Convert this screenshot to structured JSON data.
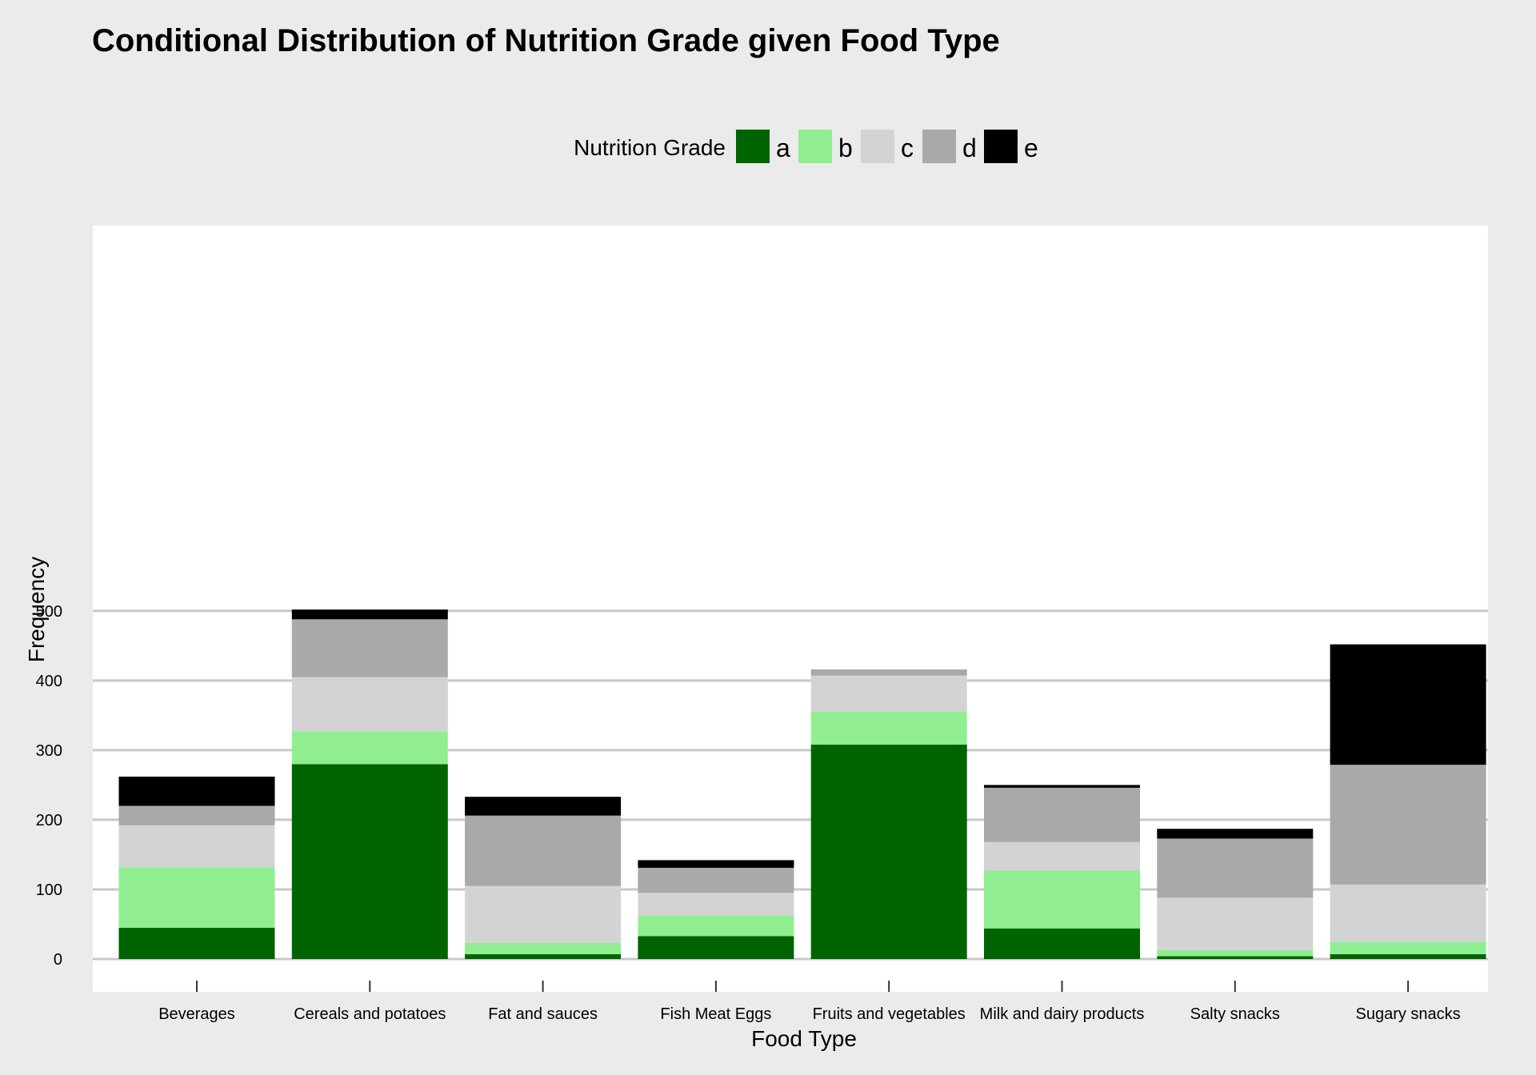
{
  "chart_data": {
    "type": "bar",
    "stacked": true,
    "title": "Conditional Distribution of Nutrition Grade given Food Type",
    "xlabel": "Food Type",
    "ylabel": "Frequency",
    "ylim": [
      0,
      525
    ],
    "yticks": [
      0,
      100,
      200,
      300,
      400,
      500
    ],
    "grid": true,
    "legend": {
      "title": "Nutrition Grade",
      "position": "top"
    },
    "categories": [
      "Beverages",
      "Cereals and potatoes",
      "Fat and sauces",
      "Fish Meat Eggs",
      "Fruits and vegetables",
      "Milk and dairy products",
      "Salty snacks",
      "Sugary snacks"
    ],
    "series": [
      {
        "name": "a",
        "color": "#006400",
        "values": [
          45,
          280,
          7,
          33,
          308,
          44,
          4,
          7
        ]
      },
      {
        "name": "b",
        "color": "#90ee90",
        "values": [
          87,
          47,
          16,
          29,
          47,
          83,
          9,
          18
        ]
      },
      {
        "name": "c",
        "color": "#d3d3d3",
        "values": [
          60,
          78,
          82,
          33,
          52,
          41,
          75,
          82
        ]
      },
      {
        "name": "d",
        "color": "#a9a9a9",
        "values": [
          28,
          83,
          101,
          36,
          9,
          78,
          85,
          172
        ]
      },
      {
        "name": "e",
        "color": "#000000",
        "values": [
          42,
          14,
          27,
          11,
          0,
          4,
          14,
          173
        ]
      }
    ]
  }
}
